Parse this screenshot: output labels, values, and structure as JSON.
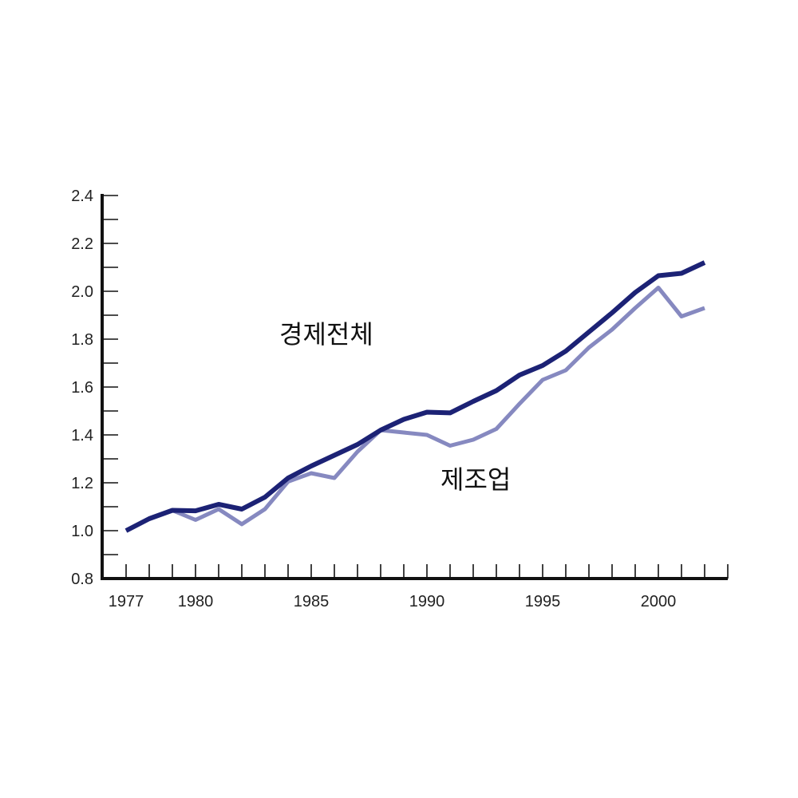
{
  "chart_data": {
    "type": "line",
    "title": "",
    "xlabel": "",
    "ylabel": "",
    "xlim": [
      1977,
      2002
    ],
    "ylim": [
      0.8,
      2.4
    ],
    "x": [
      1977,
      1978,
      1979,
      1980,
      1981,
      1982,
      1983,
      1984,
      1985,
      1986,
      1987,
      1988,
      1989,
      1990,
      1991,
      1992,
      1993,
      1994,
      1995,
      1996,
      1997,
      1998,
      1999,
      2000,
      2001,
      2002
    ],
    "x_tick_labels": [
      "1977",
      "1980",
      "1985",
      "1990",
      "1995",
      "2000"
    ],
    "x_tick_values": [
      1977,
      1980,
      1985,
      1990,
      1995,
      2000
    ],
    "y_tick_labels": [
      "0.8",
      "1.0",
      "1.2",
      "1.4",
      "1.6",
      "1.8",
      "2.0",
      "2.2",
      "2.4"
    ],
    "y_tick_values": [
      0.8,
      1.0,
      1.2,
      1.4,
      1.6,
      1.8,
      2.0,
      2.2,
      2.4
    ],
    "grid": false,
    "series": [
      {
        "name": "경제전체",
        "color": "#1c2275",
        "values": [
          1.0,
          1.05,
          1.085,
          1.083,
          1.11,
          1.09,
          1.14,
          1.22,
          1.27,
          1.315,
          1.36,
          1.42,
          1.465,
          1.495,
          1.492,
          1.54,
          1.585,
          1.65,
          1.69,
          1.75,
          1.83,
          1.91,
          1.995,
          2.065,
          2.075,
          2.12
        ]
      },
      {
        "name": "제조업",
        "color": "#8689c0",
        "values": [
          1.0,
          1.05,
          1.085,
          1.045,
          1.09,
          1.027,
          1.09,
          1.205,
          1.24,
          1.22,
          1.33,
          1.42,
          1.41,
          1.4,
          1.355,
          1.38,
          1.425,
          1.53,
          1.63,
          1.67,
          1.765,
          1.84,
          1.93,
          2.015,
          1.895,
          1.93
        ]
      }
    ]
  }
}
